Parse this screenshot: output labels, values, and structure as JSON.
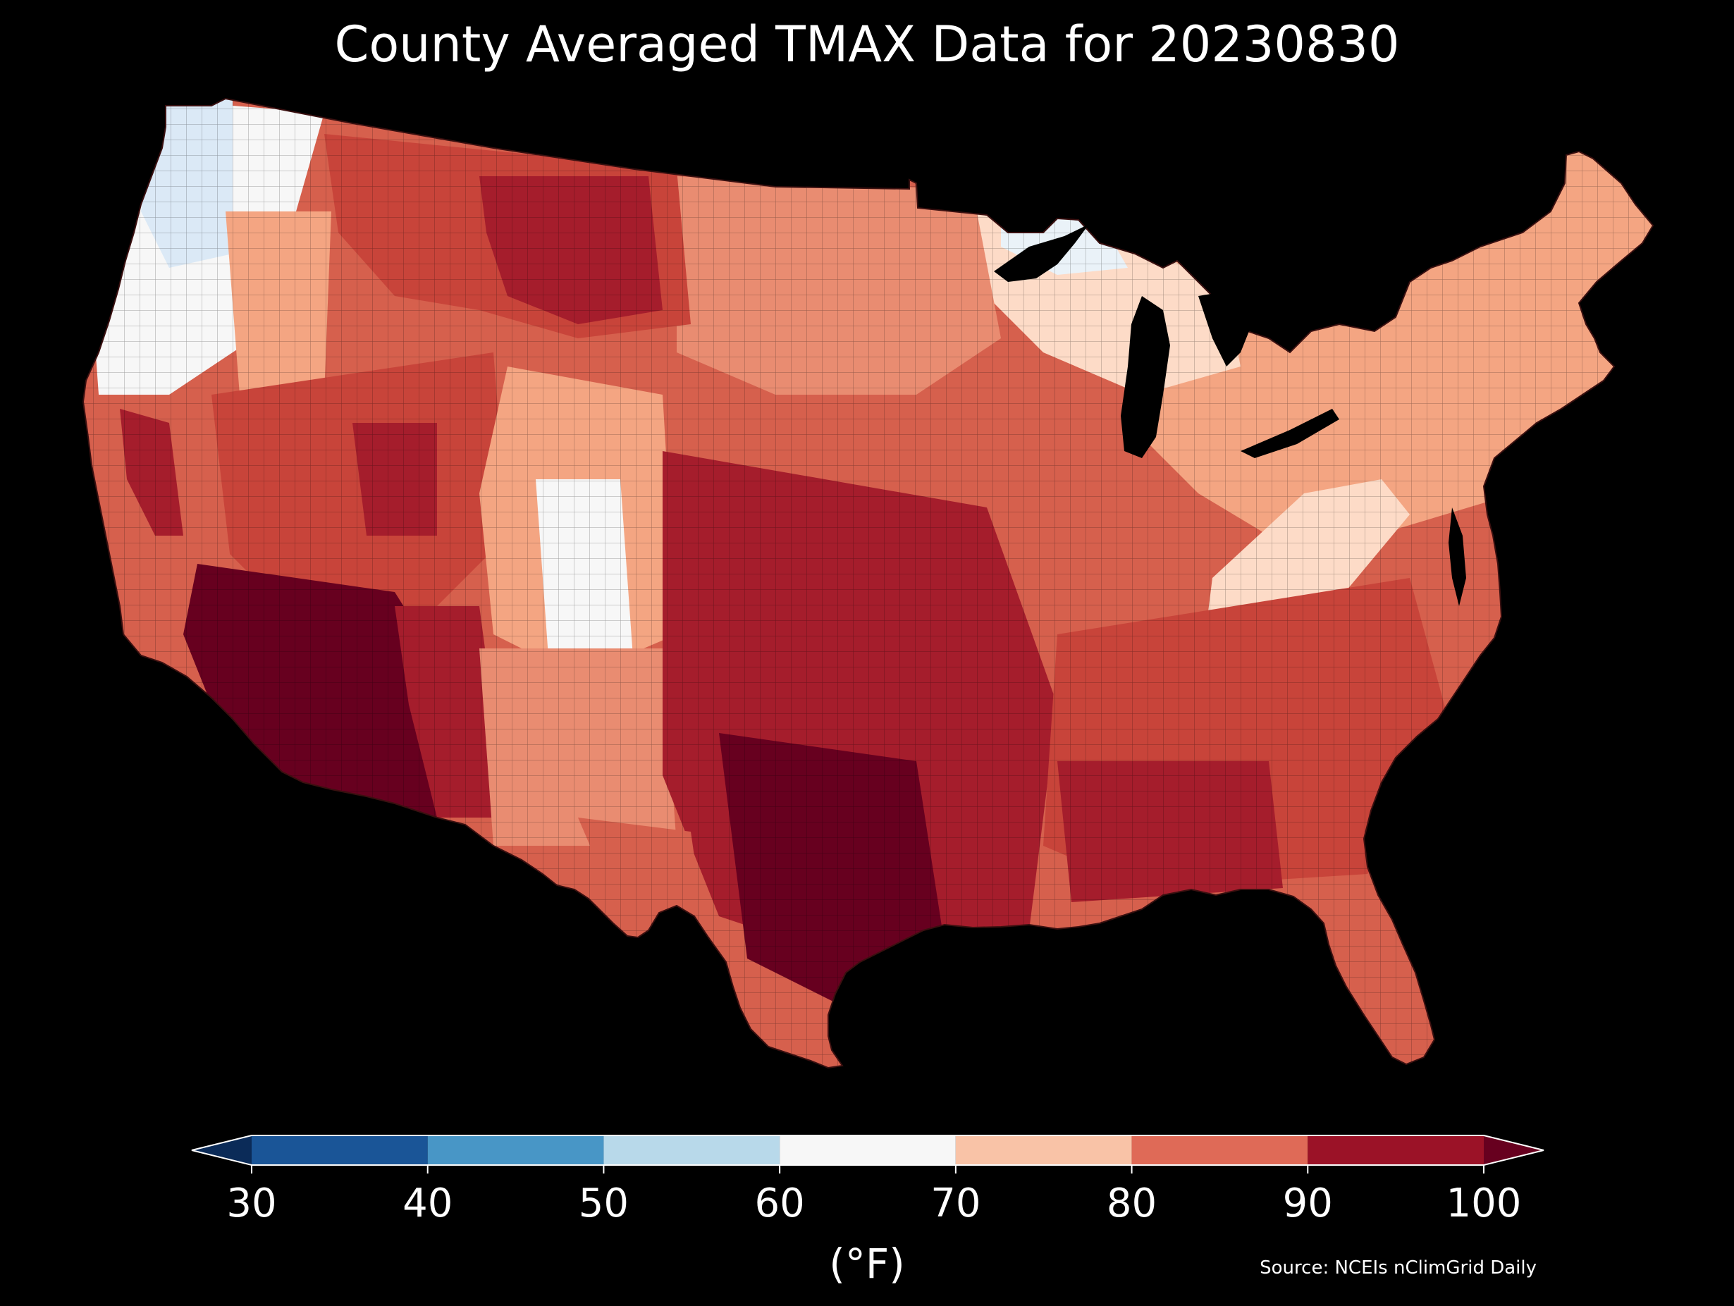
{
  "title": "County Averaged TMAX Data for 20230830",
  "colorbar": {
    "ticks": [
      "30",
      "40",
      "50",
      "60",
      "70",
      "80",
      "90",
      "100"
    ],
    "unit": "(°F)",
    "bins": [
      {
        "min": 30,
        "max": 40,
        "color": "#1a5597"
      },
      {
        "min": 40,
        "max": 50,
        "color": "#4896c6"
      },
      {
        "min": 50,
        "max": 60,
        "color": "#b8d9ea"
      },
      {
        "min": 60,
        "max": 70,
        "color": "#f7f7f7"
      },
      {
        "min": 70,
        "max": 80,
        "color": "#f9c3a7"
      },
      {
        "min": 80,
        "max": 90,
        "color": "#df6a57"
      },
      {
        "min": 90,
        "max": 100,
        "color": "#9b1227"
      }
    ],
    "under_color": "#0b2b58",
    "over_color": "#67001f"
  },
  "source": "Source: NCEIs nClimGrid Daily",
  "colors": {
    "background": "#000000",
    "text": "#ffffff",
    "hottest": "#67001f",
    "hot": "#a51d2c",
    "warm": "#d6604d",
    "mild": "#f4a582",
    "cool": "#fddbc7",
    "neutral": "#f7f7f7",
    "cold": "#dbe9f6"
  }
}
